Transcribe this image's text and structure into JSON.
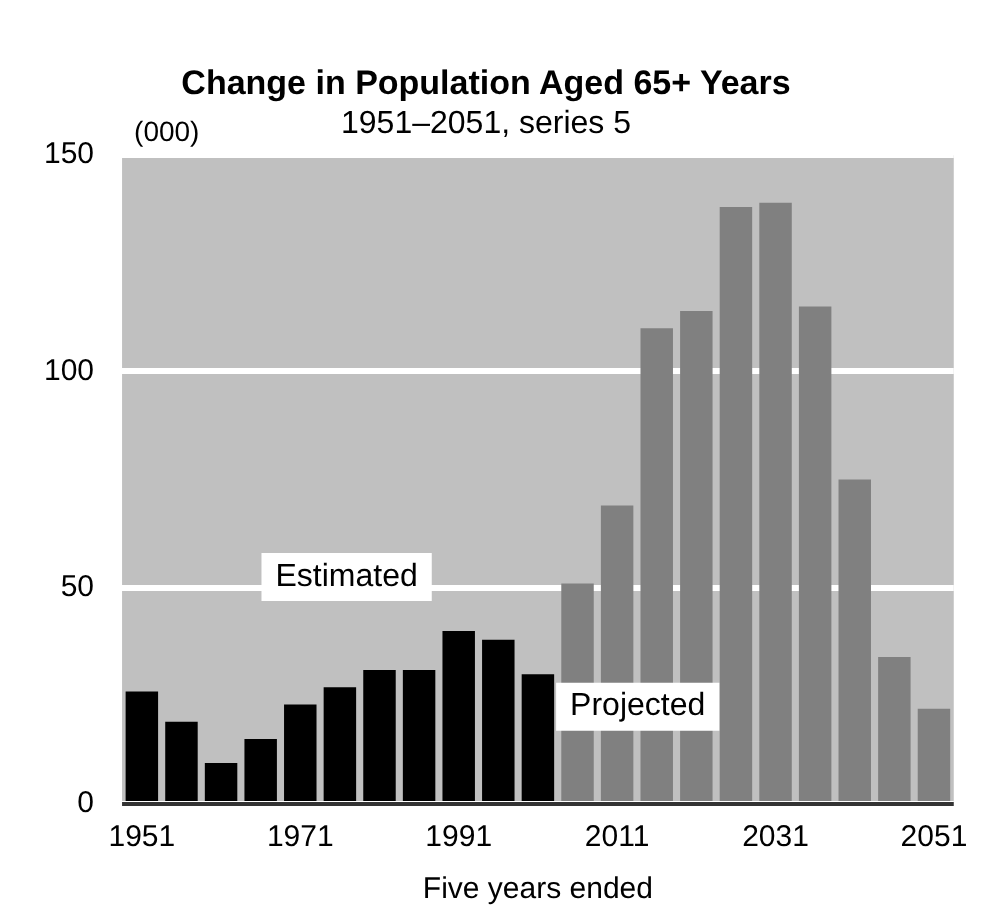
{
  "chart_data": {
    "type": "bar",
    "title": "Change in Population Aged 65+ Years",
    "subtitle": "1951–2051, series 5",
    "xlabel": "Five years ended",
    "ylabel": "(000)",
    "categories": [
      "1951",
      null,
      null,
      null,
      "1971",
      null,
      null,
      null,
      "1991",
      null,
      null,
      null,
      "2011",
      null,
      null,
      null,
      "2031",
      null,
      null,
      null,
      "2051"
    ],
    "values": [
      26,
      19,
      9.5,
      15,
      23,
      27,
      31,
      31,
      40,
      38,
      30,
      51,
      69,
      110,
      114,
      138,
      139,
      115,
      75,
      34,
      22
    ],
    "colors": [
      "#000000",
      "#000000",
      "#000000",
      "#000000",
      "#000000",
      "#000000",
      "#000000",
      "#000000",
      "#000000",
      "#000000",
      "#000000",
      "#808080",
      "#808080",
      "#808080",
      "#808080",
      "#808080",
      "#808080",
      "#808080",
      "#808080",
      "#808080",
      "#808080"
    ],
    "ylim": [
      0,
      150
    ],
    "yticks": [
      0,
      50,
      100,
      150
    ],
    "grid": "y",
    "legend": false,
    "annotations": [
      "Estimated",
      "Projected"
    ]
  }
}
